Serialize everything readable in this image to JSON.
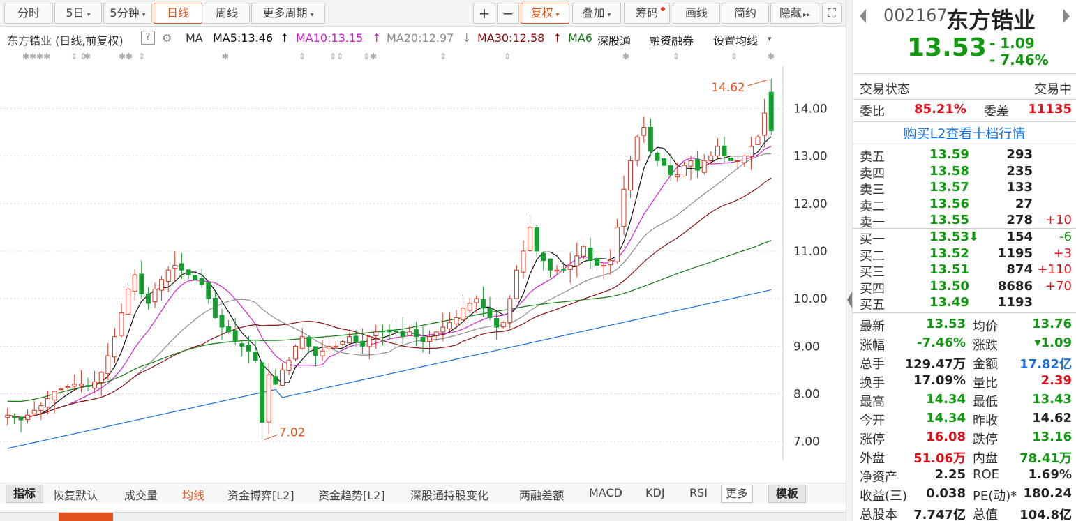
{
  "toolbar": {
    "left_buttons": [
      {
        "label": "分时",
        "active": false,
        "caret": false
      },
      {
        "label": "5日",
        "active": false,
        "caret": true
      },
      {
        "label": "5分钟",
        "active": false,
        "caret": true
      },
      {
        "label": "日线",
        "active": true,
        "caret": false
      },
      {
        "label": "周线",
        "active": false,
        "caret": false
      },
      {
        "label": "更多周期",
        "active": false,
        "caret": true
      }
    ],
    "plus": "+",
    "minus": "−",
    "fuquan": "复权",
    "overlay": "叠加",
    "chouma": "筹码",
    "draw": "画线",
    "simple": "简约",
    "hide": "隐藏",
    "hide_icon": "▸▸",
    "fullscreen_icon": "⛶"
  },
  "infobar": {
    "title": "东方锆业 (日线,前复权)",
    "help": "?",
    "settings_icon": "⚙",
    "ma_label": "MA",
    "ma5": "MA5:13.46",
    "ma5_arrow": "↑",
    "ma10": "MA10:13.15",
    "ma10_arrow": "↑",
    "ma20": "MA20:12.97",
    "ma20_arrow": "↓",
    "ma30": "MA30:12.58",
    "ma30_arrow": "↑",
    "ma60": "MA6",
    "shengutong": "深股通",
    "rongzi": "融资融券",
    "set_ma": "设置均线",
    "set_ma_caret": "▾"
  },
  "markers": [
    "✱✱✱✱",
    "⇕",
    "⇕",
    "✱",
    "✱✱",
    "⇕",
    "✱",
    "⇕",
    "⇕⇕",
    "⇕",
    "✱",
    "⇕",
    "⇕",
    "✱",
    "⇕",
    "⇕",
    "⇕",
    "✱"
  ],
  "chart_data": {
    "type": "candlestick",
    "ylim": [
      6.6,
      14.9
    ],
    "yticks": [
      "14.00",
      "13.00",
      "12.00",
      "11.00",
      "10.00",
      "9.00",
      "8.00",
      "7.00"
    ],
    "max_label": "14.62",
    "min_label": "7.02",
    "colors": {
      "up": "#e0321b",
      "down": "#14a02e",
      "ma5": "#111111",
      "ma10": "#d21fd2",
      "ma20": "#8c8c8c",
      "ma30": "#8b0e0e",
      "ma60": "#137a13",
      "ma120": "#1a6fd6"
    },
    "close_path": [
      7.55,
      7.5,
      7.45,
      7.55,
      7.65,
      7.75,
      7.9,
      8.05,
      8.1,
      8.15,
      8.2,
      8.2,
      8.15,
      8.25,
      8.45,
      8.8,
      9.2,
      9.7,
      10.2,
      10.5,
      10.1,
      9.9,
      10.2,
      10.4,
      10.6,
      10.7,
      10.6,
      10.5,
      10.4,
      10.3,
      10.0,
      9.6,
      9.4,
      9.3,
      9.1,
      9.0,
      8.9,
      8.7,
      7.4,
      8.4,
      8.2,
      8.5,
      8.7,
      9.0,
      9.2,
      9.0,
      8.8,
      8.9,
      9.0,
      9.0,
      9.1,
      9.2,
      9.1,
      9.0,
      9.2,
      9.3,
      9.3,
      9.3,
      9.3,
      9.2,
      9.3,
      9.2,
      9.1,
      9.2,
      9.3,
      9.4,
      9.5,
      9.6,
      9.8,
      9.9,
      10.0,
      9.8,
      9.6,
      9.4,
      9.5,
      10.0,
      10.6,
      11.0,
      11.5,
      11.0,
      10.8,
      10.6,
      10.6,
      10.6,
      10.7,
      10.9,
      11.1,
      10.8,
      10.7,
      10.7,
      10.8,
      11.5,
      12.3,
      12.9,
      13.4,
      13.6,
      13.1,
      12.9,
      12.8,
      12.6,
      12.6,
      12.8,
      12.9,
      12.7,
      12.9,
      13.0,
      13.2,
      13.0,
      12.9,
      12.9,
      13.0,
      13.2,
      13.4,
      13.9,
      13.53
    ]
  },
  "bottom_tabs": [
    "指标",
    "恢复默认",
    "成交量",
    "均线",
    "资金博弈[L2]",
    "资金趋势[L2]",
    "深股通持股变化",
    "两融差额",
    "MACD",
    "KDJ",
    "RSI",
    "更多",
    "模板"
  ],
  "bottom_active": "均线",
  "quote": {
    "code": "002167",
    "name": "东方锆业",
    "price": "13.53",
    "change": "- 1.09",
    "change_pct": "- 7.46%",
    "status_label": "交易状态",
    "status_value": "交易中",
    "weibi_label": "委比",
    "weibi_value": "85.21%",
    "weicha_label": "委差",
    "weicha_value": "11135",
    "l2_link": "购买L2查看十档行情",
    "sells": [
      {
        "label": "卖五",
        "price": "13.59",
        "vol": "293",
        "delta": ""
      },
      {
        "label": "卖四",
        "price": "13.58",
        "vol": "235",
        "delta": ""
      },
      {
        "label": "卖三",
        "price": "13.57",
        "vol": "133",
        "delta": ""
      },
      {
        "label": "卖二",
        "price": "13.56",
        "vol": "27",
        "delta": ""
      },
      {
        "label": "卖一",
        "price": "13.55",
        "vol": "278",
        "delta": "+10"
      }
    ],
    "buys": [
      {
        "label": "买一",
        "price": "13.53",
        "vol": "154",
        "delta": "-6",
        "arrow": "⬇"
      },
      {
        "label": "买二",
        "price": "13.52",
        "vol": "1195",
        "delta": "+3",
        "arrow": ""
      },
      {
        "label": "买三",
        "price": "13.51",
        "vol": "874",
        "delta": "+110",
        "arrow": ""
      },
      {
        "label": "买四",
        "price": "13.50",
        "vol": "8686",
        "delta": "+70",
        "arrow": ""
      },
      {
        "label": "买五",
        "price": "13.49",
        "vol": "1193",
        "delta": "",
        "arrow": ""
      }
    ],
    "stats": [
      {
        "l1": "最新",
        "v1": "13.53",
        "c1": "green",
        "l2": "均价",
        "v2": "13.76",
        "c2": "green"
      },
      {
        "l1": "涨幅",
        "v1": "-7.46%",
        "c1": "green",
        "l2": "涨跌",
        "v2": "▾1.09",
        "c2": "green"
      },
      {
        "l1": "总手",
        "v1": "129.47万",
        "c1": "dark",
        "l2": "金额",
        "v2": "17.82亿",
        "c2": "blue"
      },
      {
        "l1": "换手",
        "v1": "17.09%",
        "c1": "dark",
        "l2": "量比",
        "v2": "2.39",
        "c2": "red"
      },
      {
        "l1": "最高",
        "v1": "14.34",
        "c1": "green",
        "l2": "最低",
        "v2": "13.43",
        "c2": "green"
      },
      {
        "l1": "今开",
        "v1": "14.34",
        "c1": "green",
        "l2": "昨收",
        "v2": "14.62",
        "c2": "dark"
      },
      {
        "l1": "涨停",
        "v1": "16.08",
        "c1": "red",
        "l2": "跌停",
        "v2": "13.16",
        "c2": "green"
      },
      {
        "l1": "外盘",
        "v1": "51.06万",
        "c1": "red",
        "l2": "内盘",
        "v2": "78.41万",
        "c2": "green"
      },
      {
        "l1": "净资产",
        "v1": "2.25",
        "c1": "dark",
        "l2": "ROE",
        "v2": "1.69%",
        "c2": "dark"
      },
      {
        "l1": "收益(三)",
        "v1": "0.038",
        "c1": "dark",
        "l2": "PE(动)*",
        "v2": "180.24",
        "c2": "dark"
      },
      {
        "l1": "总股本",
        "v1": "7.747亿",
        "c1": "dark",
        "l2": "总值",
        "v2": "104.8亿",
        "c2": "dark"
      }
    ]
  }
}
